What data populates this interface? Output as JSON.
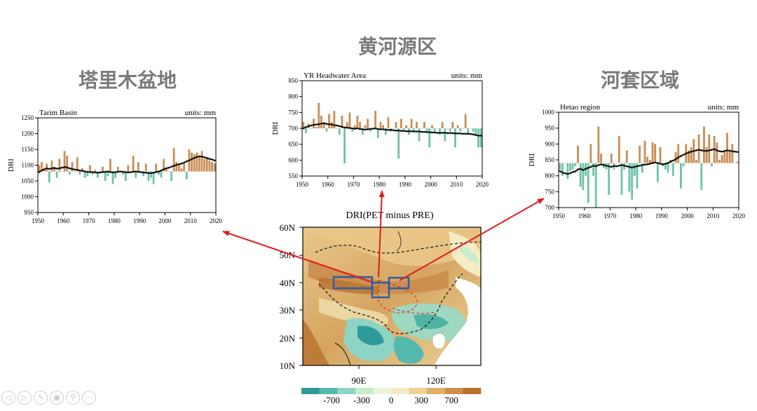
{
  "region_titles": {
    "tarim": "塔里木盆地",
    "yellow_river": "黄河源区",
    "hetao": "河套区域"
  },
  "map": {
    "title": "DRI(PET minus PRE)",
    "lat_labels": [
      "60N",
      "50N",
      "40N",
      "30N",
      "20N",
      "10N"
    ],
    "lon_labels": [
      "90E",
      "120E"
    ],
    "colorbar_labels": [
      "-700",
      "-300",
      "0",
      "300",
      "700"
    ],
    "colorbar_colors": [
      "#2e9a9a",
      "#55b8ad",
      "#8ed4c4",
      "#c6eccb",
      "#eaf5d6",
      "#f4ecc2",
      "#ecd294",
      "#dfb06a",
      "#cd8f48",
      "#b8742f"
    ]
  },
  "colors": {
    "above_bar": "#c98f58",
    "below_bar": "#6fc3a8",
    "running_mean": "#111111",
    "arrow": "#e21b1b",
    "box": "#2b5da8"
  },
  "chart_data": [
    {
      "type": "bar",
      "title": "Tarim Basin",
      "units_label": "units: mm",
      "ylabel": "DRI",
      "baseline": 1080,
      "ylim": [
        950,
        1250
      ],
      "yticks": [
        950,
        1000,
        1050,
        1100,
        1150,
        1200,
        1250
      ],
      "xlim": [
        1950,
        2020
      ],
      "xticks": [
        1950,
        1960,
        1970,
        1980,
        1990,
        2000,
        2010,
        2020
      ],
      "x_start": 1950,
      "values": [
        1100,
        1110,
        1085,
        1105,
        1045,
        1115,
        1095,
        1060,
        1120,
        1080,
        1145,
        1130,
        1070,
        1110,
        1080,
        1125,
        1070,
        1090,
        1060,
        1065,
        1100,
        1070,
        1085,
        1060,
        1075,
        1095,
        1050,
        1065,
        1120,
        1040,
        1060,
        1095,
        1080,
        1070,
        1050,
        1100,
        1075,
        1130,
        1060,
        1110,
        1075,
        1065,
        1105,
        1050,
        1060,
        1040,
        1105,
        1070,
        1060,
        1120,
        1090,
        1080,
        1050,
        1155,
        1110,
        1100,
        1090,
        1105,
        1055,
        1150,
        1140,
        1135,
        1140,
        1130,
        1145,
        1120,
        1125,
        1115,
        1110,
        1105
      ],
      "running_mean": [
        1078,
        1083,
        1087,
        1090,
        1088,
        1090,
        1091,
        1089,
        1090,
        1092,
        1094,
        1093,
        1090,
        1088,
        1086,
        1085,
        1083,
        1082,
        1080,
        1079,
        1078,
        1078,
        1077,
        1076,
        1077,
        1078,
        1079,
        1080,
        1078,
        1077,
        1078,
        1079,
        1080,
        1079,
        1078,
        1077,
        1078,
        1079,
        1080,
        1079,
        1078,
        1077,
        1076,
        1075,
        1075,
        1076,
        1078,
        1080,
        1083,
        1087,
        1090,
        1092,
        1095,
        1098,
        1101,
        1103,
        1105,
        1108,
        1112,
        1115,
        1119,
        1123,
        1126,
        1128,
        1127,
        1125,
        1122,
        1120,
        1118,
        1115
      ]
    },
    {
      "type": "bar",
      "title": "YR Headwater Area",
      "units_label": "units: mm",
      "ylabel": "DRI",
      "baseline": 700,
      "ylim": [
        550,
        850
      ],
      "yticks": [
        550,
        600,
        650,
        700,
        750,
        800,
        850
      ],
      "xlim": [
        1950,
        2020
      ],
      "xticks": [
        1950,
        1960,
        1970,
        1980,
        1990,
        2000,
        2010,
        2020
      ],
      "x_start": 1950,
      "values": [
        720,
        685,
        715,
        700,
        730,
        705,
        780,
        740,
        720,
        690,
        745,
        720,
        755,
        700,
        680,
        740,
        590,
        720,
        750,
        690,
        710,
        740,
        720,
        680,
        710,
        730,
        690,
        700,
        755,
        670,
        720,
        710,
        680,
        735,
        690,
        700,
        720,
        605,
        730,
        695,
        710,
        680,
        730,
        690,
        720,
        660,
        700,
        720,
        690,
        640,
        710,
        690,
        700,
        680,
        720,
        660,
        700,
        690,
        720,
        640,
        710,
        690,
        700,
        745,
        680,
        700,
        690,
        680,
        640,
        640
      ],
      "running_mean": [
        700,
        704,
        707,
        709,
        711,
        712,
        713,
        715,
        716,
        714,
        713,
        712,
        710,
        709,
        707,
        705,
        703,
        702,
        701,
        700,
        699,
        700,
        698,
        697,
        696,
        697,
        698,
        699,
        700,
        698,
        697,
        697,
        696,
        695,
        695,
        694,
        693,
        693,
        692,
        692,
        691,
        691,
        691,
        690,
        690,
        690,
        689,
        689,
        688,
        688,
        687,
        687,
        686,
        686,
        686,
        686,
        685,
        685,
        685,
        684,
        684,
        684,
        683,
        683,
        683,
        682,
        681,
        679,
        677,
        677
      ]
    },
    {
      "type": "bar",
      "title": "Hetao region",
      "units_label": "units: mm",
      "ylabel": "DRI",
      "baseline": 840,
      "ylim": [
        700,
        1000
      ],
      "yticks": [
        700,
        750,
        800,
        850,
        900,
        950,
        1000
      ],
      "xlim": [
        1950,
        2020
      ],
      "xticks": [
        1950,
        1960,
        1970,
        1980,
        1990,
        2000,
        2010,
        2020
      ],
      "x_start": 1950,
      "values": [
        820,
        800,
        840,
        790,
        815,
        820,
        830,
        895,
        765,
        755,
        800,
        715,
        900,
        800,
        700,
        955,
        870,
        825,
        820,
        740,
        870,
        820,
        840,
        925,
        740,
        820,
        880,
        750,
        725,
        800,
        760,
        895,
        810,
        910,
        860,
        850,
        905,
        900,
        780,
        890,
        830,
        820,
        810,
        850,
        800,
        875,
        900,
        760,
        830,
        900,
        880,
        890,
        915,
        850,
        930,
        755,
        955,
        890,
        930,
        830,
        925,
        905,
        850,
        865,
        880,
        935,
        880,
        900,
        840,
        845
      ],
      "running_mean": [
        815,
        810,
        808,
        806,
        808,
        812,
        814,
        820,
        822,
        818,
        822,
        825,
        828,
        832,
        830,
        834,
        836,
        834,
        832,
        830,
        828,
        831,
        830,
        832,
        834,
        832,
        830,
        828,
        826,
        828,
        830,
        832,
        834,
        835,
        836,
        838,
        840,
        842,
        840,
        838,
        836,
        838,
        840,
        845,
        848,
        852,
        858,
        862,
        866,
        870,
        873,
        876,
        878,
        880,
        882,
        880,
        879,
        878,
        880,
        882,
        884,
        880,
        877,
        876,
        878,
        880,
        879,
        877,
        876,
        875
      ]
    }
  ]
}
